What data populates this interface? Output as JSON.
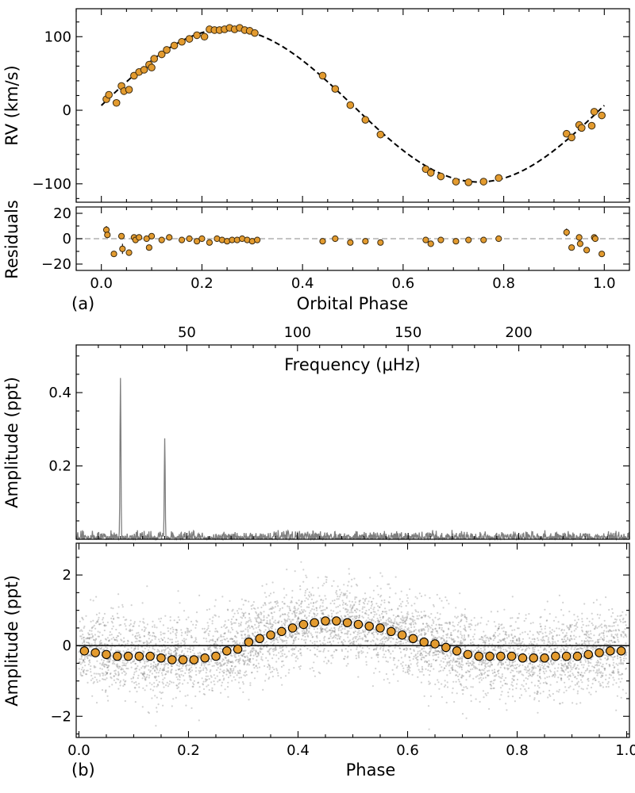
{
  "chart_data": [
    {
      "id": "rv",
      "type": "scatter",
      "panel_tag": "(a)",
      "ylabel": "RV (km/s)",
      "xlabel": "",
      "xlim": [
        -0.05,
        1.05
      ],
      "ylim": [
        -125,
        138
      ],
      "yticks": [
        -100,
        0,
        100
      ],
      "yticklabels": [
        "−100",
        "0",
        "100"
      ],
      "model": {
        "K": 104,
        "gamma": 6.5,
        "phase_offset": 0.0,
        "x_range": [
          0.0,
          1.0
        ]
      },
      "x": [
        0.01,
        0.015,
        0.03,
        0.04,
        0.045,
        0.055,
        0.065,
        0.075,
        0.085,
        0.095,
        0.1,
        0.105,
        0.12,
        0.13,
        0.145,
        0.16,
        0.175,
        0.19,
        0.205,
        0.215,
        0.225,
        0.235,
        0.245,
        0.255,
        0.265,
        0.275,
        0.285,
        0.295,
        0.305,
        0.44,
        0.465,
        0.495,
        0.525,
        0.555,
        0.645,
        0.655,
        0.675,
        0.705,
        0.73,
        0.76,
        0.79,
        0.925,
        0.935,
        0.95,
        0.955,
        0.975,
        0.98,
        0.995
      ],
      "y": [
        15,
        21,
        10,
        33,
        26,
        28,
        47,
        52,
        55,
        62,
        58,
        70,
        76,
        82,
        88,
        93,
        97,
        102,
        100,
        110,
        109,
        109,
        110,
        112,
        110,
        112,
        109,
        108,
        105,
        47,
        29,
        7,
        -13,
        -33,
        -80,
        -85,
        -90,
        -97,
        -98,
        -97,
        -92,
        -32,
        -37,
        -20,
        -24,
        -21,
        -2,
        -7
      ]
    },
    {
      "id": "residuals",
      "type": "scatter",
      "ylabel": "Residuals",
      "xlabel": "Orbital Phase",
      "xlim": [
        -0.05,
        1.05
      ],
      "ylim": [
        -25,
        25
      ],
      "yticks": [
        -20,
        0,
        20
      ],
      "yticklabels": [
        "−20",
        "0",
        "20"
      ],
      "xticks": [
        0.0,
        0.2,
        0.4,
        0.6,
        0.8,
        1.0
      ],
      "xticklabels": [
        "0.0",
        "0.2",
        "0.4",
        "0.6",
        "0.8",
        "1.0"
      ],
      "x": [
        0.01,
        0.012,
        0.025,
        0.04,
        0.042,
        0.055,
        0.065,
        0.068,
        0.075,
        0.09,
        0.095,
        0.1,
        0.12,
        0.135,
        0.16,
        0.175,
        0.19,
        0.2,
        0.215,
        0.23,
        0.24,
        0.25,
        0.26,
        0.27,
        0.28,
        0.29,
        0.3,
        0.31,
        0.44,
        0.465,
        0.495,
        0.525,
        0.555,
        0.645,
        0.655,
        0.675,
        0.705,
        0.73,
        0.76,
        0.79,
        0.925,
        0.935,
        0.95,
        0.952,
        0.965,
        0.98,
        0.982,
        0.995
      ],
      "y": [
        7,
        3,
        -12,
        2,
        -8,
        -11,
        1,
        -1,
        1,
        0,
        -7,
        2,
        -1,
        1,
        -1,
        0,
        -2,
        0,
        -3,
        0,
        -1,
        -2,
        -1,
        -1,
        0,
        -1,
        -2,
        -1,
        -2,
        0,
        -3,
        -2,
        -3,
        -1,
        -4,
        -1,
        -2,
        -1,
        -1,
        0,
        5,
        -7,
        1,
        -4,
        -9,
        1,
        0,
        -12
      ],
      "errors": [
        3,
        2,
        2,
        2,
        4,
        2,
        2,
        1.5,
        1.5,
        1.5,
        2,
        1.5,
        1.5,
        1.5,
        1.5,
        1.5,
        1.5,
        1.5,
        1.5,
        1.5,
        1.5,
        1.5,
        1.5,
        1.5,
        1.5,
        1.5,
        1.5,
        1.5,
        1.5,
        1.5,
        1.5,
        1.5,
        1.5,
        1.5,
        1.5,
        1.5,
        1.5,
        1.5,
        1.5,
        1.5,
        3,
        2,
        2,
        2,
        2,
        2,
        2,
        2
      ],
      "reference_line": 0
    },
    {
      "id": "periodogram",
      "type": "line",
      "ylabel": "Amplitude (ppt)",
      "xlabel": "Frequency (μHz)",
      "xlim": [
        0,
        250
      ],
      "ylim": [
        0,
        0.53
      ],
      "yticks": [
        0.2,
        0.4
      ],
      "yticklabels": [
        "0.2",
        "0.4"
      ],
      "xticks": [
        50,
        100,
        150,
        200
      ],
      "xticklabels": [
        "50",
        "100",
        "150",
        "200"
      ],
      "peaks": [
        {
          "x": 20,
          "amplitude": 0.44
        },
        {
          "x": 40,
          "amplitude": 0.275
        }
      ],
      "noise_level": 0.012
    },
    {
      "id": "lightcurve",
      "type": "scatter",
      "panel_tag": "(b)",
      "ylabel": "Amplitude (ppt)",
      "xlabel": "Phase",
      "xlim": [
        -0.005,
        1.005
      ],
      "ylim": [
        -2.6,
        2.9
      ],
      "yticks": [
        -2,
        0,
        2
      ],
      "yticklabels": [
        "−2",
        "0",
        "2"
      ],
      "xticks": [
        0.0,
        0.2,
        0.4,
        0.6,
        0.8,
        1.0
      ],
      "xticklabels": [
        "0.0",
        "0.2",
        "0.4",
        "0.6",
        "0.8",
        "1.0"
      ],
      "binned_x": [
        0.01,
        0.03,
        0.05,
        0.07,
        0.09,
        0.11,
        0.13,
        0.15,
        0.17,
        0.19,
        0.21,
        0.23,
        0.25,
        0.27,
        0.29,
        0.31,
        0.33,
        0.35,
        0.37,
        0.39,
        0.41,
        0.43,
        0.45,
        0.47,
        0.49,
        0.51,
        0.53,
        0.55,
        0.57,
        0.59,
        0.61,
        0.63,
        0.65,
        0.67,
        0.69,
        0.71,
        0.73,
        0.75,
        0.77,
        0.79,
        0.81,
        0.83,
        0.85,
        0.87,
        0.89,
        0.91,
        0.93,
        0.95,
        0.97,
        0.99
      ],
      "binned_y": [
        -0.15,
        -0.2,
        -0.25,
        -0.3,
        -0.3,
        -0.3,
        -0.3,
        -0.35,
        -0.4,
        -0.4,
        -0.4,
        -0.35,
        -0.3,
        -0.15,
        -0.1,
        0.1,
        0.2,
        0.3,
        0.4,
        0.5,
        0.6,
        0.65,
        0.7,
        0.7,
        0.65,
        0.6,
        0.55,
        0.5,
        0.4,
        0.3,
        0.2,
        0.1,
        0.05,
        -0.05,
        -0.15,
        -0.25,
        -0.3,
        -0.3,
        -0.3,
        -0.3,
        -0.35,
        -0.35,
        -0.35,
        -0.3,
        -0.3,
        -0.3,
        -0.25,
        -0.2,
        -0.15,
        -0.15
      ],
      "reference_line": 0
    }
  ]
}
